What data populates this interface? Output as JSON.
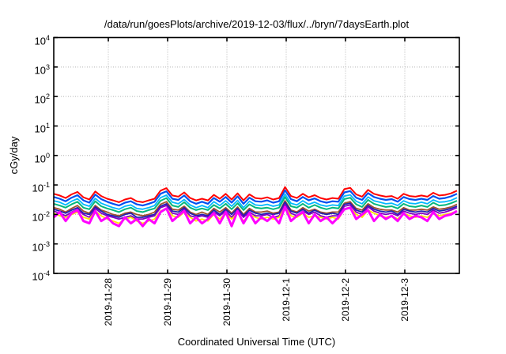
{
  "page": {
    "background": "#ffffff",
    "text_color": "#000000"
  },
  "chart_data": {
    "type": "line",
    "title": "/data/run/goesPlots/archive/2019-12-03/flux/../bryn/7daysEarth.plot",
    "xlabel": "Coordinated Universal Time (UTC)",
    "ylabel": "cGy/day",
    "legend": "none",
    "x_axis": {
      "unit": "days from left edge of plot",
      "range": [
        0,
        6.84
      ],
      "ticks": [
        {
          "pos": 0.92,
          "label": "2019-11-28"
        },
        {
          "pos": 1.92,
          "label": "2019-11-29"
        },
        {
          "pos": 2.92,
          "label": "2019-11-30"
        },
        {
          "pos": 3.92,
          "label": "2019-12-1"
        },
        {
          "pos": 4.92,
          "label": "2019-12-2"
        },
        {
          "pos": 5.92,
          "label": "2019-12-3"
        }
      ]
    },
    "y_axis": {
      "scale": "log10",
      "range_exponents": [
        -4,
        4
      ],
      "tick_exponents": [
        4,
        3,
        2,
        1,
        0,
        -1,
        -2,
        -3,
        -4
      ]
    },
    "style": {
      "grid_on": true,
      "grid_color": "#b4b4b4",
      "border_color": "#000000",
      "tick_length": 5
    },
    "x": [
      0.0,
      0.1,
      0.2,
      0.3,
      0.4,
      0.5,
      0.6,
      0.7,
      0.8,
      0.9,
      1.0,
      1.1,
      1.2,
      1.3,
      1.4,
      1.5,
      1.6,
      1.7,
      1.8,
      1.9,
      2.0,
      2.1,
      2.2,
      2.3,
      2.4,
      2.5,
      2.6,
      2.7,
      2.8,
      2.9,
      3.0,
      3.1,
      3.2,
      3.3,
      3.4,
      3.5,
      3.6,
      3.7,
      3.8,
      3.9,
      4.0,
      4.1,
      4.2,
      4.3,
      4.4,
      4.5,
      4.6,
      4.7,
      4.8,
      4.9,
      5.0,
      5.1,
      5.2,
      5.3,
      5.4,
      5.5,
      5.6,
      5.7,
      5.8,
      5.9,
      6.0,
      6.1,
      6.2,
      6.3,
      6.4,
      6.5,
      6.6,
      6.7,
      6.8
    ],
    "series": [
      {
        "name": "brown-series",
        "color": "#a0522d",
        "width": 1.8,
        "values": [
          0.017,
          0.015,
          0.012,
          0.016,
          0.02,
          0.013,
          0.011,
          0.02,
          0.014,
          0.012,
          0.01,
          0.009,
          0.011,
          0.012,
          0.01,
          0.009,
          0.01,
          0.012,
          0.022,
          0.027,
          0.015,
          0.014,
          0.019,
          0.012,
          0.01,
          0.012,
          0.01,
          0.016,
          0.012,
          0.017,
          0.011,
          0.018,
          0.01,
          0.016,
          0.012,
          0.012,
          0.013,
          0.011,
          0.012,
          0.029,
          0.014,
          0.012,
          0.017,
          0.013,
          0.015,
          0.012,
          0.011,
          0.012,
          0.012,
          0.024,
          0.027,
          0.016,
          0.014,
          0.023,
          0.017,
          0.015,
          0.014,
          0.014,
          0.012,
          0.017,
          0.014,
          0.014,
          0.015,
          0.014,
          0.018,
          0.015,
          0.016,
          0.018,
          0.022
        ]
      },
      {
        "name": "navy-series",
        "color": "#2020b0",
        "width": 1.8,
        "values": [
          0.015,
          0.013,
          0.011,
          0.014,
          0.017,
          0.011,
          0.01,
          0.018,
          0.013,
          0.01,
          0.009,
          0.008,
          0.01,
          0.011,
          0.008,
          0.008,
          0.009,
          0.01,
          0.019,
          0.023,
          0.013,
          0.012,
          0.017,
          0.011,
          0.009,
          0.01,
          0.009,
          0.014,
          0.01,
          0.015,
          0.01,
          0.016,
          0.009,
          0.014,
          0.011,
          0.01,
          0.011,
          0.01,
          0.011,
          0.026,
          0.013,
          0.011,
          0.015,
          0.011,
          0.014,
          0.011,
          0.01,
          0.011,
          0.01,
          0.022,
          0.024,
          0.014,
          0.012,
          0.02,
          0.015,
          0.013,
          0.012,
          0.013,
          0.01,
          0.015,
          0.013,
          0.012,
          0.013,
          0.012,
          0.016,
          0.013,
          0.014,
          0.016,
          0.019
        ]
      },
      {
        "name": "purple-series",
        "color": "#8000c0",
        "width": 1.8,
        "values": [
          0.013,
          0.011,
          0.009,
          0.012,
          0.015,
          0.01,
          0.008,
          0.016,
          0.011,
          0.009,
          0.008,
          0.007,
          0.008,
          0.009,
          0.007,
          0.007,
          0.008,
          0.009,
          0.017,
          0.02,
          0.011,
          0.01,
          0.015,
          0.009,
          0.008,
          0.009,
          0.008,
          0.012,
          0.009,
          0.013,
          0.008,
          0.014,
          0.008,
          0.012,
          0.009,
          0.009,
          0.01,
          0.008,
          0.009,
          0.022,
          0.011,
          0.009,
          0.013,
          0.01,
          0.012,
          0.009,
          0.008,
          0.009,
          0.009,
          0.019,
          0.021,
          0.012,
          0.01,
          0.018,
          0.013,
          0.011,
          0.01,
          0.011,
          0.009,
          0.013,
          0.011,
          0.01,
          0.011,
          0.01,
          0.014,
          0.011,
          0.012,
          0.014,
          0.017
        ]
      },
      {
        "name": "yellow-series",
        "color": "#ffe400",
        "width": 1.8,
        "values": [
          0.011,
          0.009,
          0.008,
          0.01,
          0.012,
          0.008,
          0.007,
          0.013,
          0.009,
          0.007,
          0.006,
          0.005,
          0.007,
          0.008,
          0.006,
          0.005,
          0.006,
          0.007,
          0.013,
          0.016,
          0.009,
          0.008,
          0.012,
          0.008,
          0.006,
          0.007,
          0.006,
          0.01,
          0.007,
          0.011,
          0.007,
          0.011,
          0.006,
          0.01,
          0.008,
          0.007,
          0.008,
          0.007,
          0.008,
          0.018,
          0.009,
          0.008,
          0.011,
          0.008,
          0.009,
          0.008,
          0.007,
          0.008,
          0.007,
          0.015,
          0.017,
          0.01,
          0.008,
          0.014,
          0.011,
          0.009,
          0.008,
          0.009,
          0.007,
          0.011,
          0.009,
          0.008,
          0.009,
          0.008,
          0.011,
          0.009,
          0.01,
          0.011,
          0.013
        ]
      },
      {
        "name": "cyan-series",
        "color": "#00b8ff",
        "width": 1.8,
        "values": [
          0.029,
          0.026,
          0.021,
          0.028,
          0.034,
          0.022,
          0.019,
          0.035,
          0.024,
          0.02,
          0.017,
          0.015,
          0.019,
          0.021,
          0.016,
          0.015,
          0.017,
          0.02,
          0.037,
          0.045,
          0.026,
          0.023,
          0.032,
          0.021,
          0.017,
          0.02,
          0.017,
          0.027,
          0.02,
          0.029,
          0.019,
          0.03,
          0.017,
          0.028,
          0.021,
          0.02,
          0.022,
          0.019,
          0.021,
          0.049,
          0.024,
          0.021,
          0.029,
          0.022,
          0.026,
          0.021,
          0.019,
          0.021,
          0.02,
          0.042,
          0.046,
          0.028,
          0.023,
          0.039,
          0.029,
          0.026,
          0.023,
          0.024,
          0.02,
          0.029,
          0.024,
          0.023,
          0.026,
          0.023,
          0.031,
          0.026,
          0.027,
          0.03,
          0.037
        ]
      },
      {
        "name": "teal-series",
        "color": "#00b87c",
        "width": 2,
        "values": [
          0.023,
          0.02,
          0.017,
          0.022,
          0.027,
          0.017,
          0.015,
          0.028,
          0.019,
          0.016,
          0.014,
          0.012,
          0.015,
          0.017,
          0.013,
          0.012,
          0.014,
          0.016,
          0.029,
          0.036,
          0.02,
          0.018,
          0.026,
          0.017,
          0.014,
          0.016,
          0.014,
          0.021,
          0.016,
          0.023,
          0.015,
          0.024,
          0.014,
          0.022,
          0.017,
          0.016,
          0.017,
          0.015,
          0.017,
          0.039,
          0.019,
          0.017,
          0.023,
          0.017,
          0.021,
          0.017,
          0.015,
          0.017,
          0.016,
          0.033,
          0.037,
          0.022,
          0.018,
          0.031,
          0.023,
          0.02,
          0.018,
          0.019,
          0.016,
          0.023,
          0.019,
          0.018,
          0.02,
          0.018,
          0.025,
          0.02,
          0.021,
          0.024,
          0.029
        ]
      },
      {
        "name": "blue-series",
        "color": "#0050f0",
        "width": 2.2,
        "values": [
          0.039,
          0.034,
          0.028,
          0.037,
          0.045,
          0.03,
          0.025,
          0.047,
          0.033,
          0.027,
          0.023,
          0.02,
          0.025,
          0.028,
          0.022,
          0.02,
          0.023,
          0.027,
          0.05,
          0.061,
          0.034,
          0.031,
          0.044,
          0.028,
          0.023,
          0.027,
          0.023,
          0.036,
          0.027,
          0.039,
          0.025,
          0.041,
          0.023,
          0.037,
          0.028,
          0.027,
          0.03,
          0.025,
          0.028,
          0.066,
          0.033,
          0.028,
          0.039,
          0.03,
          0.035,
          0.028,
          0.025,
          0.028,
          0.027,
          0.056,
          0.062,
          0.037,
          0.031,
          0.053,
          0.039,
          0.034,
          0.031,
          0.033,
          0.027,
          0.039,
          0.033,
          0.031,
          0.034,
          0.031,
          0.042,
          0.034,
          0.036,
          0.041,
          0.05
        ]
      },
      {
        "name": "red-series",
        "color": "#ff0000",
        "width": 2,
        "values": [
          0.05,
          0.044,
          0.036,
          0.048,
          0.058,
          0.038,
          0.032,
          0.06,
          0.042,
          0.034,
          0.03,
          0.026,
          0.032,
          0.036,
          0.028,
          0.026,
          0.03,
          0.034,
          0.064,
          0.078,
          0.044,
          0.04,
          0.056,
          0.036,
          0.03,
          0.034,
          0.03,
          0.046,
          0.034,
          0.05,
          0.032,
          0.052,
          0.03,
          0.048,
          0.036,
          0.034,
          0.038,
          0.032,
          0.036,
          0.085,
          0.042,
          0.036,
          0.05,
          0.038,
          0.045,
          0.036,
          0.032,
          0.036,
          0.034,
          0.072,
          0.08,
          0.048,
          0.04,
          0.068,
          0.05,
          0.044,
          0.04,
          0.042,
          0.034,
          0.05,
          0.042,
          0.04,
          0.044,
          0.04,
          0.054,
          0.044,
          0.046,
          0.052,
          0.064
        ]
      },
      {
        "name": "magenta-series",
        "color": "#ff00ff",
        "width": 3,
        "values": [
          0.008,
          0.012,
          0.006,
          0.011,
          0.014,
          0.006,
          0.005,
          0.013,
          0.006,
          0.008,
          0.005,
          0.004,
          0.008,
          0.005,
          0.007,
          0.004,
          0.007,
          0.005,
          0.012,
          0.016,
          0.006,
          0.009,
          0.013,
          0.005,
          0.008,
          0.005,
          0.007,
          0.011,
          0.005,
          0.012,
          0.004,
          0.013,
          0.005,
          0.011,
          0.005,
          0.008,
          0.006,
          0.009,
          0.005,
          0.018,
          0.006,
          0.009,
          0.012,
          0.005,
          0.01,
          0.006,
          0.008,
          0.005,
          0.008,
          0.015,
          0.017,
          0.007,
          0.01,
          0.014,
          0.006,
          0.01,
          0.007,
          0.009,
          0.006,
          0.011,
          0.007,
          0.009,
          0.008,
          0.006,
          0.012,
          0.007,
          0.009,
          0.01,
          0.013
        ]
      }
    ]
  }
}
